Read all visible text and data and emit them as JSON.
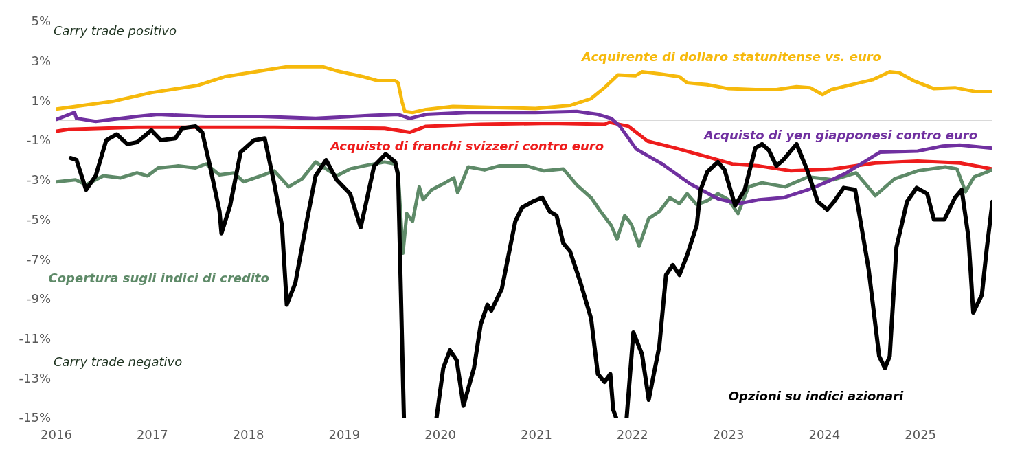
{
  "chart_data": {
    "type": "line",
    "annotations": [
      "Carry trade positivo",
      "Carry trade negativo"
    ],
    "xlim": [
      2016,
      2025.75
    ],
    "xticks": [
      2016,
      2017,
      2018,
      2019,
      2020,
      2021,
      2022,
      2023,
      2024,
      2025
    ],
    "ylim": [
      -15,
      5
    ],
    "yticks": [
      {
        "value": 5,
        "label": "5%"
      },
      {
        "value": 3,
        "label": "3%"
      },
      {
        "value": 1,
        "label": "1%"
      },
      {
        "value": -1,
        "label": "-1%"
      },
      {
        "value": -3,
        "label": "-3%"
      },
      {
        "value": -5,
        "label": "-5%"
      },
      {
        "value": -7,
        "label": "-7%"
      },
      {
        "value": -9,
        "label": "-9%"
      },
      {
        "value": -11,
        "label": "-11%"
      },
      {
        "value": -13,
        "label": "-13%"
      },
      {
        "value": -15,
        "label": "-15%"
      }
    ],
    "grid": false,
    "legend": false,
    "marker": "none",
    "line_style": "solid",
    "ref_lines": [
      {
        "axis": "y",
        "value": 0,
        "color": "#d9d9d9"
      }
    ],
    "series": [
      {
        "name": "Acquirente di dollaro statunitense vs. euro",
        "color": "#f6b90c",
        "x": [
          2016.0,
          2016.58,
          2016.99,
          2017.46,
          2017.75,
          2018.19,
          2018.39,
          2018.78,
          2018.92,
          2019.06,
          2019.2,
          2019.35,
          2019.53,
          2019.56,
          2019.6,
          2019.63,
          2019.71,
          2019.85,
          2020.13,
          2020.99,
          2021.35,
          2021.57,
          2021.71,
          2021.85,
          2022.03,
          2022.1,
          2022.28,
          2022.49,
          2022.57,
          2022.78,
          2023.0,
          2023.28,
          2023.5,
          2023.71,
          2023.85,
          2023.98,
          2024.07,
          2024.28,
          2024.5,
          2024.68,
          2024.78,
          2024.93,
          2025.14,
          2025.36,
          2025.57,
          2025.75
        ],
        "values": [
          0.57,
          0.95,
          1.4,
          1.75,
          2.2,
          2.55,
          2.7,
          2.7,
          2.5,
          2.35,
          2.2,
          2.0,
          2.0,
          1.9,
          0.95,
          0.45,
          0.4,
          0.55,
          0.7,
          0.6,
          0.75,
          1.1,
          1.65,
          2.3,
          2.25,
          2.45,
          2.35,
          2.2,
          1.9,
          1.8,
          1.6,
          1.55,
          1.55,
          1.7,
          1.65,
          1.3,
          1.55,
          1.8,
          2.05,
          2.45,
          2.4,
          2.0,
          1.6,
          1.65,
          1.45,
          1.45
        ]
      },
      {
        "name": "Acquisto di franchi svizzeri contro euro",
        "color": "#ee1c1c",
        "x": [
          2016.0,
          2016.13,
          2016.84,
          2018.27,
          2019.42,
          2019.68,
          2019.85,
          2020.42,
          2021.14,
          2021.71,
          2021.76,
          2021.96,
          2022.16,
          2022.45,
          2022.75,
          2023.04,
          2023.32,
          2023.65,
          2024.09,
          2024.53,
          2024.97,
          2025.41,
          2025.75
        ],
        "values": [
          -0.55,
          -0.45,
          -0.35,
          -0.35,
          -0.4,
          -0.6,
          -0.3,
          -0.2,
          -0.15,
          -0.2,
          -0.1,
          -0.3,
          -1.05,
          -1.4,
          -1.8,
          -2.2,
          -2.3,
          -2.55,
          -2.45,
          -2.15,
          -2.05,
          -2.15,
          -2.45
        ]
      },
      {
        "name": "Copertura sugli indici di credito",
        "color": "#5e8a68",
        "x": [
          2016.0,
          2016.2,
          2016.31,
          2016.49,
          2016.67,
          2016.84,
          2016.95,
          2017.06,
          2017.27,
          2017.45,
          2017.56,
          2017.7,
          2017.85,
          2017.95,
          2018.13,
          2018.27,
          2018.42,
          2018.56,
          2018.7,
          2018.81,
          2018.92,
          2019.06,
          2019.2,
          2019.42,
          2019.53,
          2019.56,
          2019.61,
          2019.65,
          2019.71,
          2019.78,
          2019.82,
          2019.91,
          2020.03,
          2020.14,
          2020.18,
          2020.29,
          2020.46,
          2020.61,
          2020.9,
          2021.08,
          2021.28,
          2021.42,
          2021.57,
          2021.67,
          2021.78,
          2021.84,
          2021.92,
          2021.99,
          2022.07,
          2022.17,
          2022.28,
          2022.39,
          2022.49,
          2022.57,
          2022.67,
          2022.78,
          2022.89,
          2023.0,
          2023.1,
          2023.21,
          2023.35,
          2023.59,
          2023.83,
          2024.09,
          2024.33,
          2024.53,
          2024.73,
          2024.97,
          2025.26,
          2025.38,
          2025.47,
          2025.56,
          2025.75
        ],
        "values": [
          -3.1,
          -3.0,
          -3.25,
          -2.8,
          -2.9,
          -2.65,
          -2.8,
          -2.4,
          -2.3,
          -2.4,
          -2.2,
          -2.75,
          -2.65,
          -3.1,
          -2.8,
          -2.55,
          -3.35,
          -2.95,
          -2.1,
          -2.45,
          -2.8,
          -2.45,
          -2.3,
          -2.1,
          -2.2,
          -2.65,
          -6.7,
          -4.7,
          -5.1,
          -3.35,
          -4.0,
          -3.5,
          -3.2,
          -2.9,
          -3.65,
          -2.35,
          -2.5,
          -2.3,
          -2.3,
          -2.55,
          -2.45,
          -3.25,
          -3.9,
          -4.6,
          -5.3,
          -6.0,
          -4.8,
          -5.25,
          -6.35,
          -4.95,
          -4.6,
          -3.9,
          -4.2,
          -3.7,
          -4.25,
          -4.05,
          -3.7,
          -4.0,
          -4.7,
          -3.35,
          -3.15,
          -3.35,
          -2.85,
          -3.0,
          -2.65,
          -3.8,
          -2.95,
          -2.55,
          -2.35,
          -2.45,
          -3.6,
          -2.85,
          -2.5
        ]
      },
      {
        "name": "Acquisto di yen giapponesi contro euro",
        "color": "#7030a0",
        "x": [
          2016.0,
          2016.19,
          2016.21,
          2016.41,
          2016.84,
          2017.06,
          2017.56,
          2018.13,
          2018.7,
          2019.28,
          2019.56,
          2019.68,
          2019.85,
          2020.28,
          2020.99,
          2021.42,
          2021.64,
          2021.78,
          2021.87,
          2022.04,
          2022.31,
          2022.6,
          2022.89,
          2023.1,
          2023.32,
          2023.57,
          2023.83,
          2024.03,
          2024.23,
          2024.43,
          2024.58,
          2024.97,
          2025.23,
          2025.41,
          2025.75
        ],
        "values": [
          0.05,
          0.4,
          0.1,
          -0.05,
          0.2,
          0.3,
          0.2,
          0.2,
          0.1,
          0.25,
          0.3,
          0.1,
          0.3,
          0.4,
          0.4,
          0.45,
          0.3,
          0.1,
          -0.3,
          -1.45,
          -2.2,
          -3.2,
          -3.95,
          -4.2,
          -4.0,
          -3.9,
          -3.5,
          -3.1,
          -2.65,
          -2.05,
          -1.6,
          -1.55,
          -1.3,
          -1.25,
          -1.4
        ]
      },
      {
        "name": "Opzioni su indici azionari",
        "color": "#000000",
        "x": [
          2016.15,
          2016.21,
          2016.31,
          2016.41,
          2016.52,
          2016.63,
          2016.74,
          2016.84,
          2016.99,
          2017.09,
          2017.24,
          2017.31,
          2017.45,
          2017.52,
          2017.6,
          2017.7,
          2017.72,
          2017.81,
          2017.92,
          2018.06,
          2018.17,
          2018.27,
          2018.35,
          2018.4,
          2018.49,
          2018.6,
          2018.7,
          2018.81,
          2018.92,
          2019.06,
          2019.17,
          2019.31,
          2019.43,
          2019.53,
          2019.56,
          2019.6,
          2019.62,
          2019.8,
          2019.96,
          2020.03,
          2020.1,
          2020.17,
          2020.24,
          2020.35,
          2020.42,
          2020.49,
          2020.53,
          2020.64,
          2020.71,
          2020.78,
          2020.85,
          2020.96,
          2021.06,
          2021.14,
          2021.21,
          2021.28,
          2021.35,
          2021.46,
          2021.57,
          2021.64,
          2021.71,
          2021.77,
          2021.8,
          2021.83,
          2021.88,
          2021.94,
          2022.01,
          2022.1,
          2022.17,
          2022.28,
          2022.35,
          2022.42,
          2022.49,
          2022.57,
          2022.67,
          2022.71,
          2022.78,
          2022.89,
          2022.96,
          2023.07,
          2023.17,
          2023.28,
          2023.35,
          2023.42,
          2023.5,
          2023.57,
          2023.64,
          2023.71,
          2023.82,
          2023.93,
          2024.03,
          2024.1,
          2024.2,
          2024.32,
          2024.46,
          2024.57,
          2024.63,
          2024.68,
          2024.75,
          2024.86,
          2024.96,
          2025.07,
          2025.14,
          2025.25,
          2025.36,
          2025.43,
          2025.5,
          2025.55,
          2025.64,
          2025.69,
          2025.75
        ],
        "values": [
          -1.9,
          -2.0,
          -3.5,
          -2.8,
          -1.0,
          -0.7,
          -1.2,
          -1.1,
          -0.5,
          -1.0,
          -0.9,
          -0.4,
          -0.3,
          -0.6,
          -2.3,
          -4.6,
          -5.7,
          -4.3,
          -1.6,
          -1.0,
          -0.9,
          -3.2,
          -5.3,
          -9.3,
          -8.2,
          -5.3,
          -2.8,
          -2.0,
          -3.0,
          -3.7,
          -5.4,
          -2.3,
          -1.7,
          -2.1,
          -2.8,
          -11.0,
          -15,
          null,
          -15,
          -12.5,
          -11.6,
          -12.1,
          -14.4,
          -12.5,
          -10.3,
          -9.3,
          -9.6,
          -8.5,
          -6.8,
          -5.1,
          -4.4,
          -4.1,
          -3.9,
          -4.6,
          -4.8,
          -6.2,
          -6.6,
          -8.2,
          -10.0,
          -12.8,
          -13.2,
          -12.8,
          -14.6,
          -15,
          null,
          -15,
          -10.7,
          -11.8,
          -14.1,
          -11.4,
          -7.8,
          -7.3,
          -7.8,
          -6.8,
          -5.3,
          -3.5,
          -2.6,
          -2.1,
          -2.5,
          -4.3,
          -3.5,
          -1.4,
          -1.2,
          -1.5,
          -2.3,
          -2.0,
          -1.6,
          -1.2,
          -2.5,
          -4.1,
          -4.5,
          -4.1,
          -3.4,
          -3.5,
          -7.5,
          -11.9,
          -12.5,
          -11.9,
          -6.4,
          -4.1,
          -3.4,
          -3.7,
          -5.0,
          -5.0,
          -3.9,
          -3.5,
          -5.9,
          -9.7,
          -8.8,
          -6.5,
          -4.1
        ]
      }
    ]
  }
}
